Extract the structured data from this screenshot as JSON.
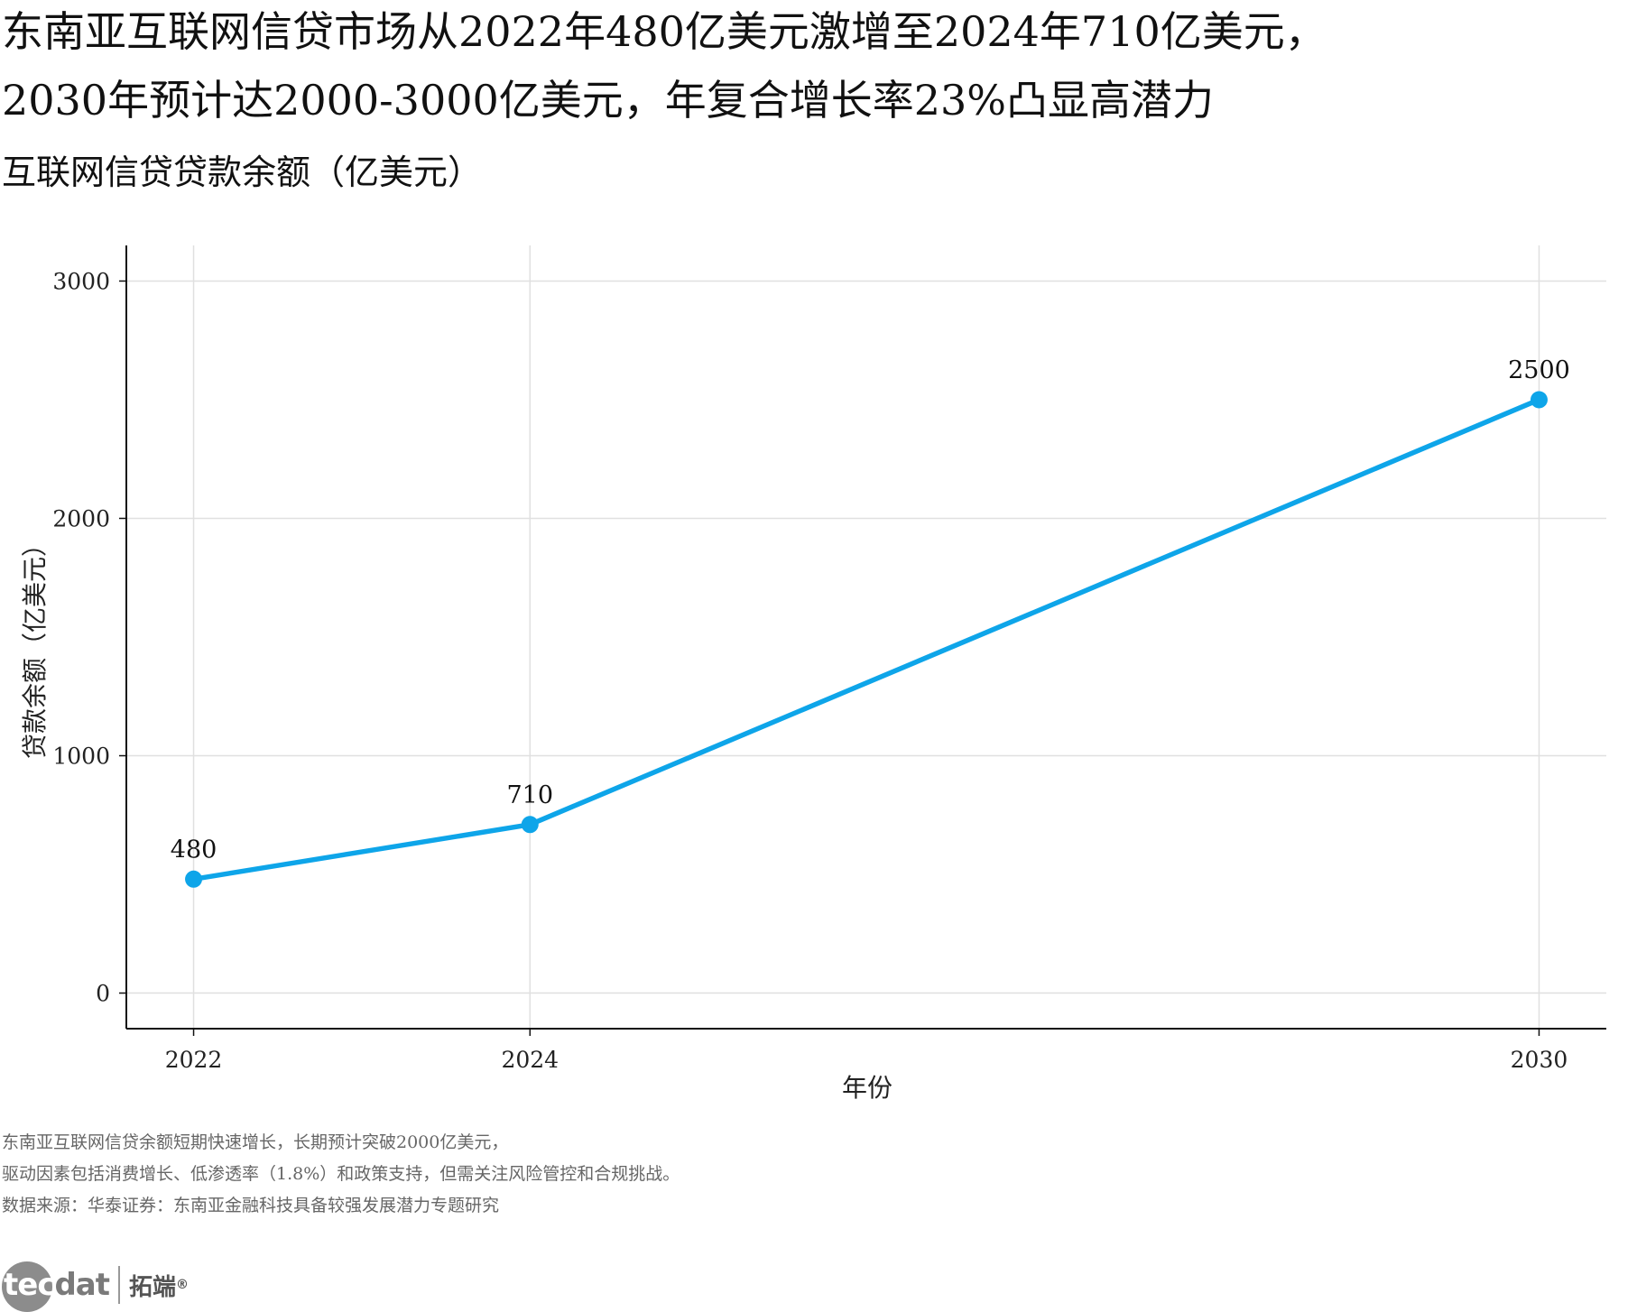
{
  "header": {
    "title_line1": "东南亚互联网信贷市场从2022年480亿美元激增至2024年710亿美元，",
    "title_line2": "2030年预计达2000-3000亿美元，年复合增长率23%凸显高潜力",
    "subtitle": "互联网信贷贷款余额（亿美元）"
  },
  "chart_data": {
    "type": "line",
    "x": [
      2022,
      2024,
      2030
    ],
    "x_tick_labels": [
      "2022",
      "2024",
      "2030"
    ],
    "series": [
      {
        "name": "互联网信贷贷款余额",
        "values": [
          480,
          710,
          2500
        ],
        "color": "#0ea5e9"
      }
    ],
    "data_labels": [
      "480",
      "710",
      "2500"
    ],
    "xlabel": "年份",
    "ylabel": "贷款余额（亿美元）",
    "y_ticks": [
      0,
      1000,
      2000,
      3000
    ],
    "y_tick_labels": [
      "0",
      "1000",
      "2000",
      "3000"
    ],
    "ylim": [
      -150,
      3150
    ],
    "xlim": [
      2021.6,
      2030.4
    ],
    "grid": true,
    "line_color": "#0ea5e9",
    "grid_color": "#e0e0e0"
  },
  "footer": {
    "note_line1": "东南亚互联网信贷余额短期快速增长，长期预计突破2000亿美元，",
    "note_line2": "驱动因素包括消费增长、低渗透率（1.8%）和政策支持，但需关注风险管控和合规挑战。",
    "source": "数据来源：华泰证券：东南亚金融科技具备较强发展潜力专题研究"
  },
  "logo": {
    "mark_head": "tec",
    "mark_tail": "dat",
    "name_cn": "拓端",
    "registered": "®"
  }
}
